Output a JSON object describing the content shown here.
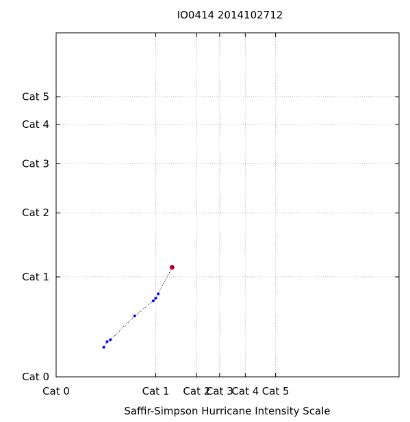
{
  "chart_data": {
    "type": "scatter",
    "title": "IO0414 2014102712",
    "xlabel": "Saffir-Simpson Hurricane Intensity Scale",
    "ylabel": "",
    "x_scale": "log",
    "y_scale": "log",
    "x_range_kt": [
      34,
      300
    ],
    "y_range_kt": [
      34,
      300
    ],
    "x_ticks": [
      {
        "value": 34,
        "label": "Cat 0"
      },
      {
        "value": 64,
        "label": "Cat 1"
      },
      {
        "value": 83,
        "label": "Cat 2"
      },
      {
        "value": 96,
        "label": "Cat 3"
      },
      {
        "value": 113,
        "label": "Cat 4"
      },
      {
        "value": 137,
        "label": "Cat 5"
      }
    ],
    "y_ticks": [
      {
        "value": 34,
        "label": "Cat 0"
      },
      {
        "value": 64,
        "label": "Cat 1"
      },
      {
        "value": 96,
        "label": "Cat 2"
      },
      {
        "value": 131,
        "label": "Cat 3"
      },
      {
        "value": 168,
        "label": "Cat 4"
      },
      {
        "value": 200,
        "label": "Cat 5"
      }
    ],
    "grid": true,
    "series": [
      {
        "type": "line",
        "color": "#000000",
        "style": "dotted",
        "points": [
          [
            46,
            41
          ],
          [
            47,
            42.5
          ],
          [
            48,
            43
          ],
          [
            56,
            50
          ],
          [
            63,
            55
          ],
          [
            64,
            56
          ],
          [
            65,
            57.5
          ],
          [
            71,
            68
          ]
        ]
      },
      {
        "type": "scatter",
        "color": "#0000ee",
        "points": [
          [
            46,
            41
          ],
          [
            47,
            42.5
          ],
          [
            48,
            43
          ],
          [
            56,
            50
          ],
          [
            63,
            55
          ],
          [
            64,
            56
          ],
          [
            65,
            57.5
          ]
        ]
      },
      {
        "type": "scatter",
        "color": "#aa0033",
        "points": [
          [
            71,
            68
          ]
        ]
      }
    ]
  }
}
